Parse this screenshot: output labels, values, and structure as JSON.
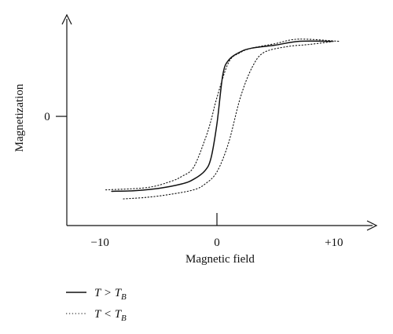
{
  "chart_data": {
    "type": "line",
    "title": "",
    "xlabel": "Magnetic field",
    "ylabel": "Magnetization",
    "xlim": [
      -12.5,
      12.5
    ],
    "ylim": [
      -1.55,
      1.3
    ],
    "x_ticks": [
      {
        "value": -10,
        "label": "−10"
      },
      {
        "value": 0,
        "label": "0"
      },
      {
        "value": 10,
        "label": "+10"
      }
    ],
    "y_ticks": [
      {
        "value": 0,
        "label": "0"
      }
    ],
    "grid": false,
    "legend_position": "bottom-left",
    "series": [
      {
        "name": "T > T_B",
        "legend": {
          "main": "T > T",
          "sub": "B"
        },
        "style": "solid",
        "color": "#111111",
        "x": [
          -9,
          -7,
          -5,
          -3,
          -2,
          -1,
          -0.5,
          0,
          0.5,
          1,
          2,
          3,
          5,
          7,
          9.8
        ],
        "y": [
          -1.0,
          -0.99,
          -0.96,
          -0.9,
          -0.84,
          -0.72,
          -0.55,
          -0.1,
          0.55,
          0.75,
          0.86,
          0.91,
          0.95,
          1.0,
          1.0
        ]
      },
      {
        "name": "T < T_B",
        "legend": {
          "main": "T < T",
          "sub": "B"
        },
        "style": "dotted",
        "color": "#111111",
        "branches": [
          {
            "x": [
              -9.5,
              -6,
              -4,
              -3,
              -2,
              -1,
              -0.5,
              0,
              1,
              2,
              3,
              5,
              7,
              10.5
            ],
            "y": [
              -0.98,
              -0.95,
              -0.87,
              -0.8,
              -0.68,
              -0.3,
              -0.05,
              0.25,
              0.72,
              0.85,
              0.91,
              0.97,
              1.03,
              1.0
            ]
          },
          {
            "x": [
              -8,
              -6,
              -4,
              -2,
              -1,
              0,
              1,
              2,
              3,
              4,
              6,
              8,
              10
            ],
            "y": [
              -1.1,
              -1.08,
              -1.04,
              -0.98,
              -0.9,
              -0.74,
              -0.35,
              0.25,
              0.65,
              0.85,
              0.93,
              0.96,
              1.0
            ]
          }
        ]
      }
    ]
  }
}
